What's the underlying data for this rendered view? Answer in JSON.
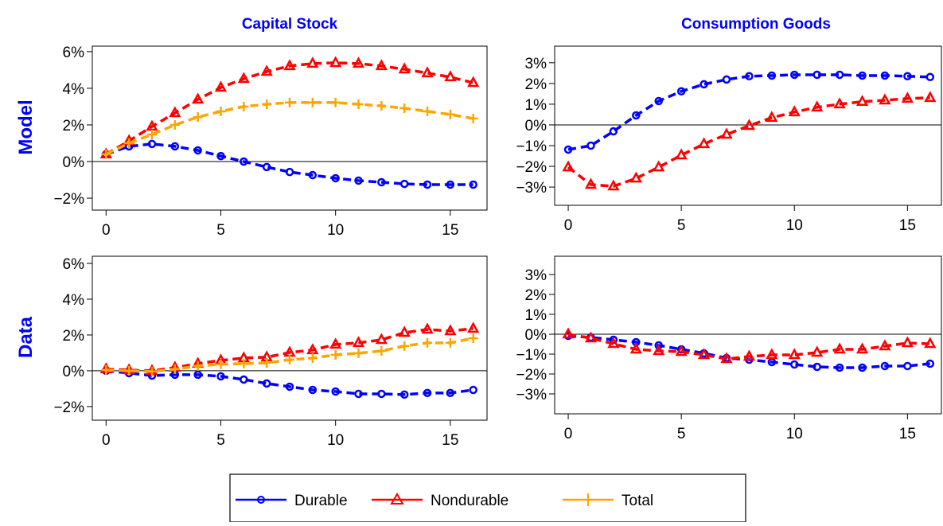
{
  "column_titles": [
    "Capital Stock",
    "Consumption Goods"
  ],
  "row_labels": [
    "Model",
    "Data"
  ],
  "chart_data": [
    {
      "type": "line",
      "xlim": [
        -0.6,
        16.6
      ],
      "ylim": [
        -2.65,
        6.3
      ],
      "xticks": [
        0,
        5,
        10,
        15
      ],
      "yticks": [
        {
          "value": -2,
          "label": "−2%"
        },
        {
          "value": 0,
          "label": "0%"
        },
        {
          "value": 2,
          "label": "2%"
        },
        {
          "value": 4,
          "label": "4%"
        },
        {
          "value": 6,
          "label": "6%"
        }
      ],
      "x": [
        0,
        1,
        2,
        3,
        4,
        5,
        6,
        7,
        8,
        9,
        10,
        11,
        12,
        13,
        14,
        15,
        16
      ],
      "series": [
        {
          "name": "Durable",
          "color": "#0000ff",
          "marker": "circle",
          "values": [
            0.4,
            0.83,
            0.96,
            0.83,
            0.61,
            0.3,
            0,
            -0.3,
            -0.57,
            -0.74,
            -0.91,
            -1.04,
            -1.13,
            -1.22,
            -1.26,
            -1.26,
            -1.26
          ]
        },
        {
          "name": "Nondurable",
          "color": "#ff0000",
          "marker": "triangle",
          "values": [
            0.4,
            1.13,
            1.91,
            2.65,
            3.39,
            4.04,
            4.52,
            4.91,
            5.22,
            5.35,
            5.39,
            5.35,
            5.22,
            5.04,
            4.83,
            4.61,
            4.3
          ]
        },
        {
          "name": "Total",
          "color": "#ffa500",
          "marker": "plus",
          "values": [
            0.4,
            1.0,
            1.48,
            2.0,
            2.43,
            2.74,
            3.0,
            3.13,
            3.22,
            3.22,
            3.22,
            3.13,
            3.04,
            2.91,
            2.74,
            2.57,
            2.35
          ]
        }
      ]
    },
    {
      "type": "line",
      "xlim": [
        -0.6,
        16.5
      ],
      "ylim": [
        -3.88,
        3.8
      ],
      "xticks": [
        0,
        5,
        10,
        15
      ],
      "yticks": [
        {
          "value": -3,
          "label": "−3%"
        },
        {
          "value": -2,
          "label": "−2%"
        },
        {
          "value": -1,
          "label": "−1%"
        },
        {
          "value": 0,
          "label": "0%"
        },
        {
          "value": 1,
          "label": "1%"
        },
        {
          "value": 2,
          "label": "2%"
        },
        {
          "value": 3,
          "label": "3%"
        }
      ],
      "x": [
        0,
        1,
        2,
        3,
        4,
        5,
        6,
        7,
        8,
        9,
        10,
        11,
        12,
        13,
        14,
        15,
        16
      ],
      "series": [
        {
          "name": "Durable",
          "color": "#0000ff",
          "marker": "circle",
          "values": [
            -1.19,
            -1.0,
            -0.31,
            0.46,
            1.15,
            1.62,
            1.96,
            2.19,
            2.35,
            2.38,
            2.42,
            2.42,
            2.42,
            2.38,
            2.38,
            2.35,
            2.31
          ]
        },
        {
          "name": "Nondurable",
          "color": "#ff0000",
          "marker": "triangle",
          "values": [
            -2.04,
            -2.88,
            -2.96,
            -2.58,
            -2.04,
            -1.46,
            -0.92,
            -0.46,
            -0.04,
            0.35,
            0.62,
            0.85,
            1.0,
            1.12,
            1.19,
            1.27,
            1.31
          ]
        }
      ]
    },
    {
      "type": "line",
      "xlim": [
        -0.6,
        16.6
      ],
      "ylim": [
        -2.76,
        6.4
      ],
      "xticks": [
        0,
        5,
        10,
        15
      ],
      "yticks": [
        {
          "value": -2,
          "label": "−2%"
        },
        {
          "value": 0,
          "label": "0%"
        },
        {
          "value": 2,
          "label": "2%"
        },
        {
          "value": 4,
          "label": "4%"
        },
        {
          "value": 6,
          "label": "6%"
        }
      ],
      "x": [
        0,
        1,
        2,
        3,
        4,
        5,
        6,
        7,
        8,
        9,
        10,
        11,
        12,
        13,
        14,
        15,
        16
      ],
      "series": [
        {
          "name": "Durable",
          "color": "#0000ff",
          "marker": "circle",
          "values": [
            0,
            -0.13,
            -0.27,
            -0.22,
            -0.22,
            -0.31,
            -0.49,
            -0.71,
            -0.89,
            -1.07,
            -1.16,
            -1.29,
            -1.29,
            -1.33,
            -1.24,
            -1.24,
            -1.07
          ]
        },
        {
          "name": "Nondurable",
          "color": "#ff0000",
          "marker": "triangle",
          "values": [
            0.09,
            0.04,
            0,
            0.18,
            0.4,
            0.58,
            0.71,
            0.76,
            1.02,
            1.16,
            1.47,
            1.56,
            1.73,
            2.13,
            2.31,
            2.22,
            2.36
          ]
        },
        {
          "name": "Total",
          "color": "#ffa500",
          "marker": "plus",
          "values": [
            0.04,
            0,
            -0.04,
            0.09,
            0.27,
            0.36,
            0.4,
            0.44,
            0.62,
            0.71,
            0.89,
            0.98,
            1.11,
            1.38,
            1.56,
            1.56,
            1.82
          ]
        }
      ]
    },
    {
      "type": "line",
      "xlim": [
        -0.6,
        16.5
      ],
      "ylim": [
        -4.0,
        3.92
      ],
      "xticks": [
        0,
        5,
        10,
        15
      ],
      "yticks": [
        {
          "value": -3,
          "label": "−3%"
        },
        {
          "value": -2,
          "label": "−2%"
        },
        {
          "value": -1,
          "label": "−1%"
        },
        {
          "value": 0,
          "label": "0%"
        },
        {
          "value": 1,
          "label": "1%"
        },
        {
          "value": 2,
          "label": "2%"
        },
        {
          "value": 3,
          "label": "3%"
        }
      ],
      "x": [
        0,
        1,
        2,
        3,
        4,
        5,
        6,
        7,
        8,
        9,
        10,
        11,
        12,
        13,
        14,
        15,
        16
      ],
      "series": [
        {
          "name": "Durable",
          "color": "#0000ff",
          "marker": "circle",
          "values": [
            -0.08,
            -0.16,
            -0.28,
            -0.4,
            -0.56,
            -0.76,
            -0.96,
            -1.2,
            -1.28,
            -1.4,
            -1.52,
            -1.64,
            -1.68,
            -1.68,
            -1.6,
            -1.6,
            -1.48
          ]
        },
        {
          "name": "Nondurable",
          "color": "#ff0000",
          "marker": "triangle",
          "values": [
            0,
            -0.2,
            -0.48,
            -0.76,
            -0.84,
            -0.88,
            -1.04,
            -1.24,
            -1.12,
            -1.04,
            -1.04,
            -0.92,
            -0.76,
            -0.76,
            -0.6,
            -0.44,
            -0.48
          ]
        }
      ]
    }
  ]
}
